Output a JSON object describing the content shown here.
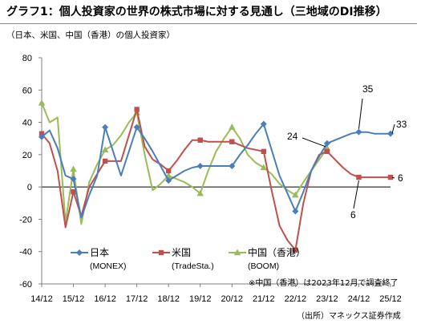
{
  "header": {
    "title": "グラフ1：個人投資家の世界の株式市場に対する見通し（三地域のDI推移）",
    "subtitle": "（日本、米国、中国（香港）の個人投資家）"
  },
  "colors": {
    "accent": "#e9559a",
    "japan": "#4a7ebb",
    "us": "#c0504d",
    "china": "#9bbb59"
  },
  "chart_data": {
    "type": "line",
    "ylim": [
      -60,
      80
    ],
    "yticks": [
      80,
      60,
      40,
      20,
      0,
      -20,
      -40,
      -60
    ],
    "xlim": [
      0,
      44
    ],
    "x_tick_labels": [
      {
        "x": 0,
        "label": "14/12"
      },
      {
        "x": 4,
        "label": "15/12"
      },
      {
        "x": 8,
        "label": "16/12"
      },
      {
        "x": 12,
        "label": "17/12"
      },
      {
        "x": 16,
        "label": "18/12"
      },
      {
        "x": 20,
        "label": "19/12"
      },
      {
        "x": 24,
        "label": "20/12"
      },
      {
        "x": 28,
        "label": "21/12"
      },
      {
        "x": 32,
        "label": "22/12"
      },
      {
        "x": 36,
        "label": "23/12"
      },
      {
        "x": 40,
        "label": "24/12"
      },
      {
        "x": 44,
        "label": "25/12"
      }
    ],
    "series": [
      {
        "name": "日本",
        "source": "(MONEX)",
        "color": "#4a7ebb",
        "marker": "diamond",
        "x": [
          0,
          1,
          2,
          3,
          4,
          5,
          6,
          7,
          8,
          9,
          10,
          11,
          12,
          13,
          14,
          15,
          16,
          17,
          18,
          19,
          20,
          21,
          22,
          23,
          24,
          25,
          26,
          27,
          28,
          29,
          30,
          31,
          32,
          33,
          34,
          35,
          36,
          37,
          38,
          39,
          40,
          41,
          42,
          43,
          44
        ],
        "y": [
          31,
          35,
          24,
          7,
          5,
          -19,
          -5,
          7,
          37,
          22,
          7,
          22,
          37,
          30,
          22,
          13,
          4,
          7,
          10,
          12,
          13,
          13,
          13,
          13,
          13,
          20,
          26,
          33,
          39,
          23,
          7,
          -4,
          -15,
          -3,
          10,
          19,
          27,
          29,
          31,
          33,
          34,
          34,
          33,
          33,
          33
        ]
      },
      {
        "name": "米国",
        "source": "(TradeSta.)",
        "color": "#c0504d",
        "marker": "square",
        "x": [
          0,
          1,
          2,
          3,
          4,
          5,
          6,
          7,
          8,
          9,
          10,
          11,
          12,
          13,
          14,
          15,
          16,
          17,
          18,
          19,
          20,
          21,
          22,
          23,
          24,
          25,
          26,
          27,
          28,
          29,
          30,
          31,
          32,
          33,
          34,
          35,
          36,
          37,
          38,
          39,
          40,
          41,
          42,
          43,
          44
        ],
        "y": [
          33,
          27,
          10,
          -25,
          -3,
          -18,
          0,
          8,
          16,
          16,
          16,
          32,
          48,
          25,
          17,
          14,
          10,
          16,
          23,
          29,
          29,
          28,
          28,
          28,
          28,
          26,
          24,
          23,
          22,
          -2,
          -24,
          -33,
          -39,
          -10,
          10,
          20,
          22,
          17,
          12,
          8,
          6,
          6,
          6,
          6,
          6
        ]
      },
      {
        "name": "中国（香港）",
        "source": "(BOOM)",
        "color": "#9bbb59",
        "marker": "triangle",
        "x": [
          0,
          1,
          2,
          3,
          4,
          5,
          6,
          7,
          8,
          9,
          10,
          11,
          12,
          13,
          14,
          15,
          16,
          17,
          18,
          19,
          20,
          21,
          22,
          23,
          24,
          25,
          26,
          27,
          28,
          29,
          30,
          31,
          32,
          33,
          34,
          35,
          36
        ],
        "y": [
          52,
          40,
          43,
          -22,
          11,
          -23,
          3,
          14,
          23,
          26,
          32,
          40,
          46,
          20,
          -2,
          2,
          7,
          5,
          3,
          0,
          -4,
          10,
          22,
          30,
          37,
          30,
          20,
          15,
          12,
          8,
          2,
          -2,
          -5,
          3,
          10,
          17,
          24
        ]
      }
    ],
    "annotations": [
      "35",
      "33",
      "24",
      "6",
      "6"
    ],
    "note": "※中国（香港）は2023年12月で調査終了",
    "source_label": "（出所）マネックス証券作成"
  }
}
